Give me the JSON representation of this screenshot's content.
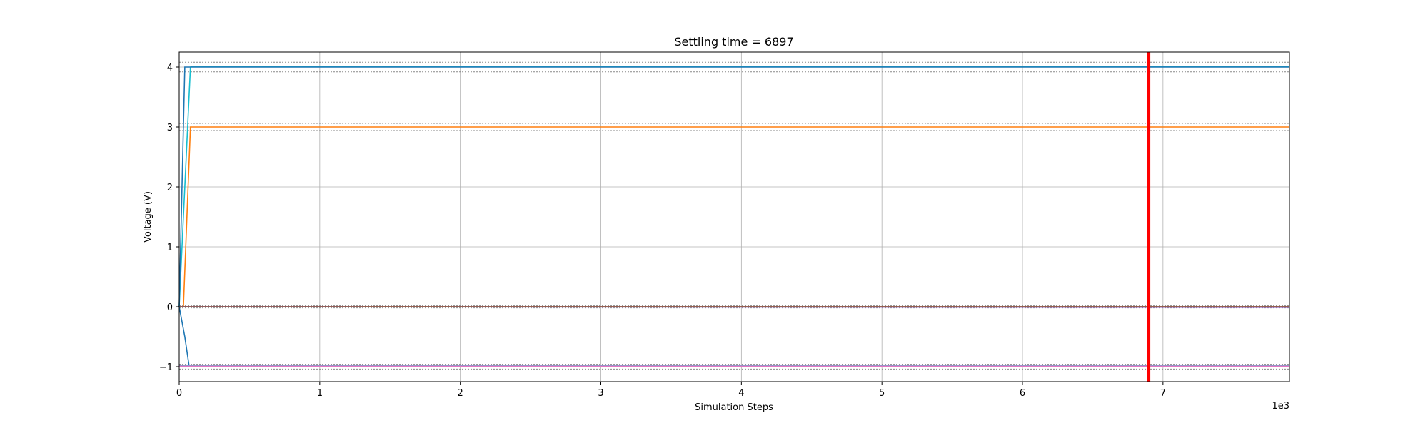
{
  "chart_data": {
    "type": "line",
    "title": "Settling time = 6897",
    "xlabel": "Simulation Steps",
    "ylabel": "Voltage (V)",
    "x_offset_label": "1e3",
    "xlim": [
      0,
      7900
    ],
    "ylim": [
      -1.25,
      4.25
    ],
    "x_ticks": [
      0,
      1000,
      2000,
      3000,
      4000,
      5000,
      6000,
      7000
    ],
    "x_tick_labels": [
      "0",
      "1",
      "2",
      "3",
      "4",
      "5",
      "6",
      "7"
    ],
    "y_ticks": [
      -1,
      0,
      1,
      2,
      3,
      4
    ],
    "y_tick_labels": [
      "−1",
      "0",
      "1",
      "2",
      "3",
      "4"
    ],
    "grid": true,
    "settling_time_marker": {
      "x": 6897,
      "color": "#ff0000"
    },
    "series": [
      {
        "color": "#17becf",
        "x": [
          0,
          80,
          90,
          7900
        ],
        "y": [
          0,
          4.0,
          4.01,
          4.01
        ]
      },
      {
        "color": "#1f77b4",
        "x": [
          0,
          40,
          7900
        ],
        "y": [
          0,
          4.0,
          4.0
        ]
      },
      {
        "color": "#ff7f0e",
        "x": [
          0,
          30,
          80,
          7900
        ],
        "y": [
          0,
          0,
          3.0,
          3.0
        ]
      },
      {
        "color": "#2ca02c",
        "x": [
          0,
          7900
        ],
        "y": [
          0,
          0
        ]
      },
      {
        "color": "#d62728",
        "x": [
          0,
          7900
        ],
        "y": [
          0,
          0
        ]
      },
      {
        "color": "#9467bd",
        "x": [
          0,
          7900
        ],
        "y": [
          0,
          -0.01
        ]
      },
      {
        "color": "#8c564b",
        "x": [
          0,
          7900
        ],
        "y": [
          0,
          0
        ]
      },
      {
        "color": "#1f77b4",
        "x": [
          0,
          40,
          70,
          7900
        ],
        "y": [
          0,
          -0.5,
          -0.98,
          -0.98
        ]
      },
      {
        "color": "#17becf",
        "x": [
          0,
          7900
        ],
        "y": [
          -0.98,
          -0.98
        ]
      },
      {
        "color": "#e377c2",
        "x": [
          0,
          7900
        ],
        "y": [
          -0.99,
          -0.99
        ]
      }
    ],
    "tolerance_bands": [
      {
        "color": "#888888",
        "y": [
          4.08,
          3.92
        ]
      },
      {
        "color": "#888888",
        "y": [
          3.06,
          2.94
        ]
      },
      {
        "color": "#888888",
        "y": [
          0.02,
          -0.02
        ]
      },
      {
        "color": "#888888",
        "y": [
          -0.96,
          -1.04
        ]
      }
    ]
  }
}
